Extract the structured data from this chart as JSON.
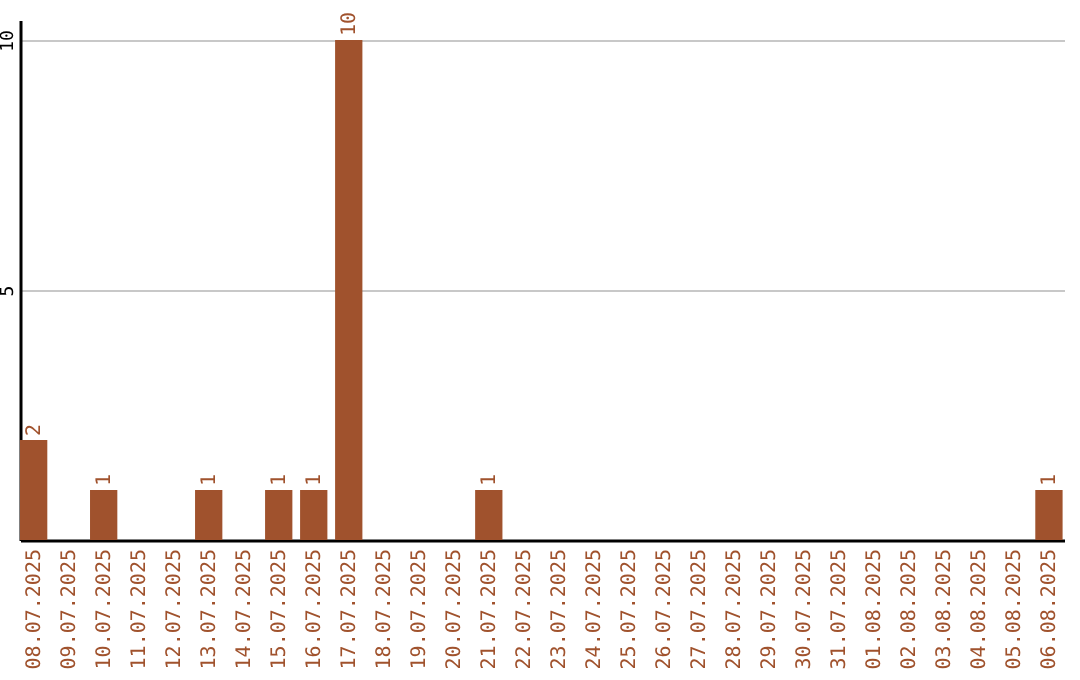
{
  "chart_data": {
    "type": "bar",
    "categories": [
      "08.07.2025",
      "09.07.2025",
      "10.07.2025",
      "11.07.2025",
      "12.07.2025",
      "13.07.2025",
      "14.07.2025",
      "15.07.2025",
      "16.07.2025",
      "17.07.2025",
      "18.07.2025",
      "19.07.2025",
      "20.07.2025",
      "21.07.2025",
      "22.07.2025",
      "23.07.2025",
      "24.07.2025",
      "25.07.2025",
      "26.07.2025",
      "27.07.2025",
      "28.07.2025",
      "29.07.2025",
      "30.07.2025",
      "31.07.2025",
      "01.08.2025",
      "02.08.2025",
      "03.08.2025",
      "04.08.2025",
      "05.08.2025",
      "06.08.2025"
    ],
    "values": [
      2,
      0,
      1,
      0,
      0,
      1,
      0,
      1,
      1,
      10,
      0,
      0,
      0,
      1,
      0,
      0,
      0,
      0,
      0,
      0,
      0,
      0,
      0,
      0,
      0,
      0,
      0,
      0,
      0,
      1
    ],
    "value_labels": [
      "2",
      null,
      "1",
      null,
      null,
      "1",
      null,
      "1",
      "1",
      "10",
      null,
      null,
      null,
      "1",
      null,
      null,
      null,
      null,
      null,
      null,
      null,
      null,
      null,
      null,
      null,
      null,
      null,
      null,
      null,
      "1"
    ],
    "color": "#a0522d",
    "ylim": [
      0,
      10.4
    ],
    "yticks": [
      5,
      10
    ],
    "grid": "y"
  }
}
